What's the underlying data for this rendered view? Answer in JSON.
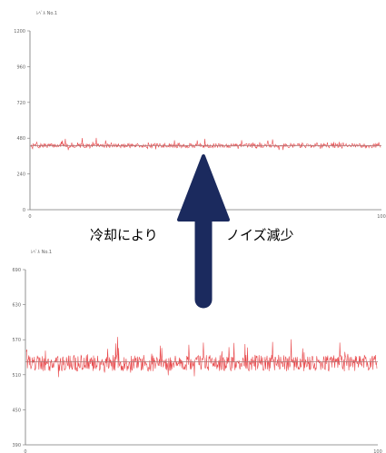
{
  "annotation": {
    "left_text": "冷却により",
    "right_text": "ノイズ減少",
    "arrow_color": "#1b2a5e"
  },
  "colors": {
    "series": "#e8474a",
    "mean": "#aa7777",
    "axis": "#777777"
  },
  "chart_data": [
    {
      "type": "line",
      "title": "ﾚﾍﾞﾙ No.1",
      "xlim": [
        0,
        100
      ],
      "ylim": [
        0,
        1200
      ],
      "y_ticks": [
        0,
        240,
        480,
        720,
        960,
        1200
      ],
      "x_tick_labels": [
        "0",
        "100"
      ],
      "series": [
        {
          "mean": 430,
          "noise_amplitude": 15,
          "spike_amplitude": 30,
          "samples": 600
        }
      ],
      "mean_line": 430,
      "grid": false
    },
    {
      "type": "line",
      "title": "ﾚﾍﾞﾙ No.1",
      "xlim": [
        0,
        100
      ],
      "ylim": [
        390,
        690
      ],
      "y_ticks": [
        390,
        450,
        510,
        570,
        630,
        690
      ],
      "x_tick_labels": [
        "0",
        "100"
      ],
      "series": [
        {
          "mean": 530,
          "noise_amplitude": 14,
          "spike_amplitude": 28,
          "samples": 700
        }
      ],
      "mean_line": 532,
      "grid": false
    }
  ]
}
